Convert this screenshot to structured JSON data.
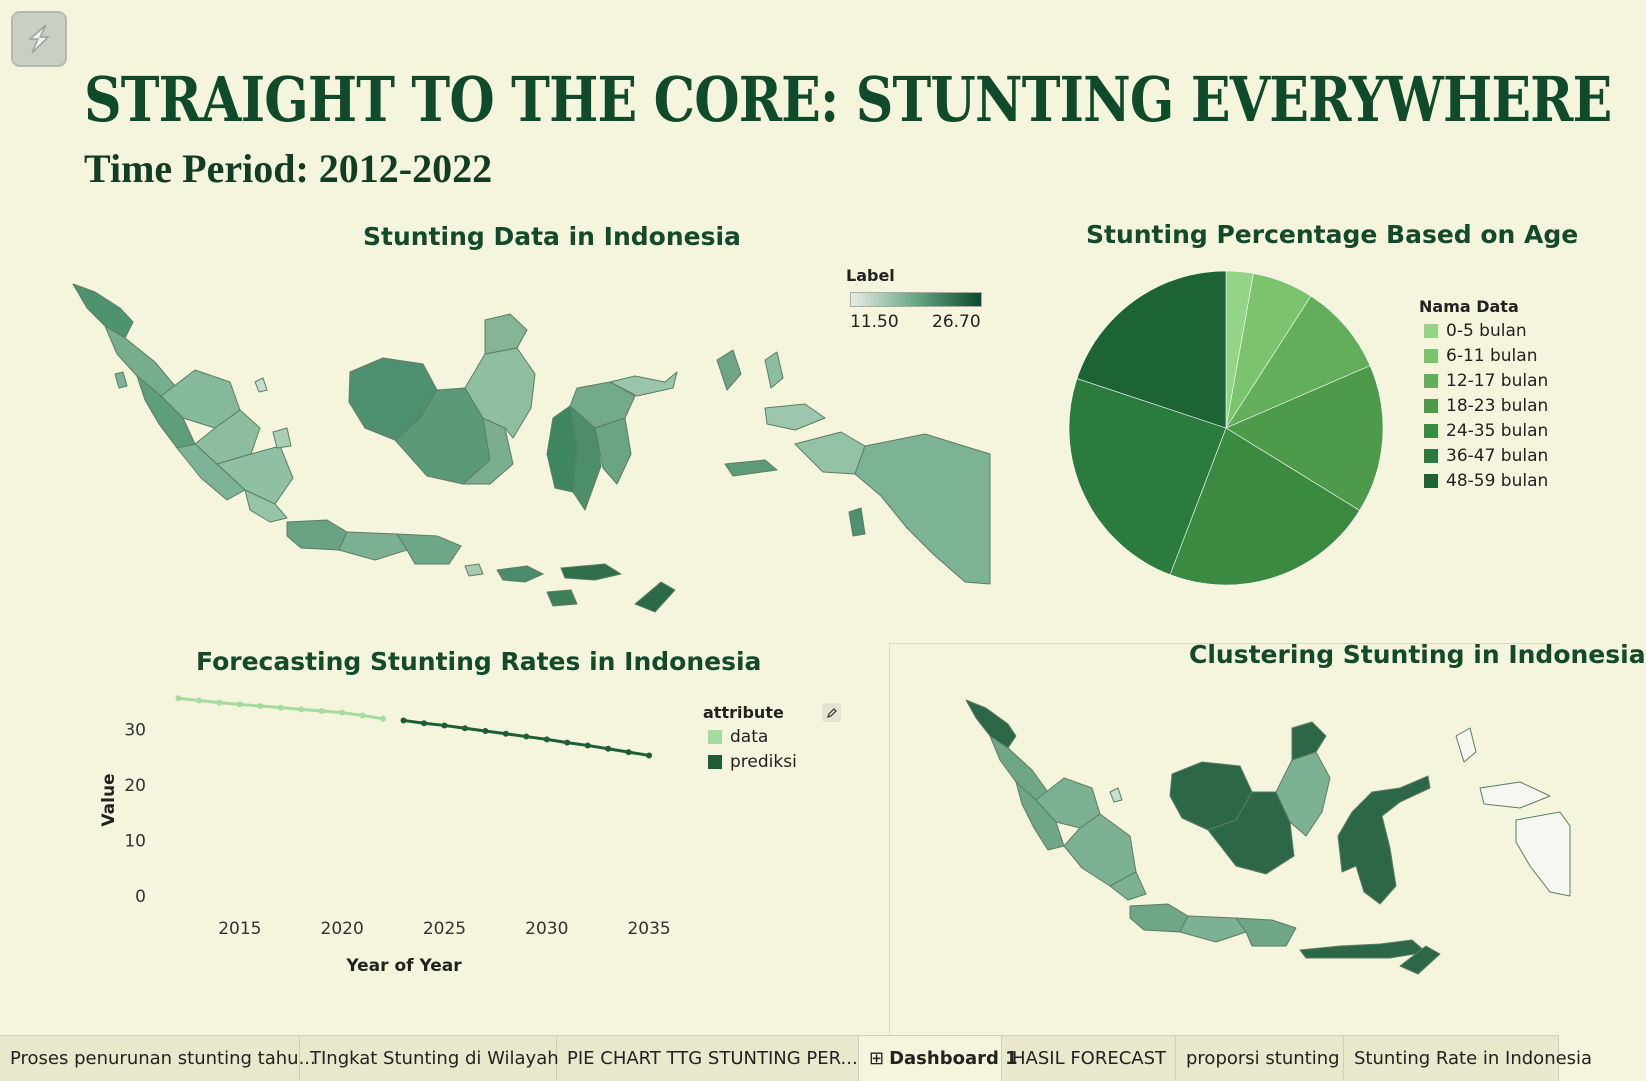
{
  "header": {
    "title": "STRAIGHT TO THE CORE: STUNTING EVERYWHERE",
    "subtitle": "Time Period: 2012-2022"
  },
  "map_panel": {
    "title": "Stunting Data in Indonesia",
    "legend_title": "Label",
    "legend_min": "11.50",
    "legend_max": "26.70",
    "colors": {
      "low": "#e8ece4",
      "high": "#0d4a2c"
    }
  },
  "pie_panel": {
    "title": "Stunting Percentage Based on Age",
    "legend_title": "Nama Data"
  },
  "forecast_panel": {
    "title": "Forecasting Stunting Rates in Indonesia",
    "legend_title": "attribute",
    "edit_icon": "pencil-icon"
  },
  "cluster_panel": {
    "title": "Clustering Stunting in Indonesia"
  },
  "chart_data": [
    {
      "type": "pie",
      "title": "Stunting Percentage Based on Age",
      "legend_title": "Nama Data",
      "legend_position": "right",
      "categories": [
        "0-5 bulan",
        "6-11 bulan",
        "12-17 bulan",
        "18-23 bulan",
        "24-35 bulan",
        "36-47 bulan",
        "48-59 bulan"
      ],
      "values": [
        2.8,
        6.3,
        9.4,
        15.3,
        22.0,
        24.3,
        19.9
      ],
      "colors": [
        "#95d487",
        "#7cc36d",
        "#63ae5a",
        "#4c9a4a",
        "#3a8a42",
        "#2b7b3e",
        "#1d6435"
      ]
    },
    {
      "type": "line",
      "title": "Forecasting Stunting Rates in Indonesia",
      "xlabel": "Year of Year",
      "ylabel": "Value",
      "xlim": [
        2011,
        2037
      ],
      "ylim": [
        0,
        36
      ],
      "xticks": [
        2015,
        2020,
        2025,
        2030,
        2035
      ],
      "yticks": [
        0,
        10,
        20,
        30
      ],
      "legend_title": "attribute",
      "legend_position": "right",
      "series": [
        {
          "name": "data",
          "color": "#a6dba0",
          "x": [
            2012,
            2013,
            2014,
            2015,
            2016,
            2017,
            2018,
            2019,
            2020,
            2021,
            2022
          ],
          "y": [
            35.6,
            35.2,
            34.8,
            34.5,
            34.2,
            33.9,
            33.6,
            33.3,
            33.0,
            32.5,
            31.9
          ]
        },
        {
          "name": "prediksi",
          "color": "#1e5e36",
          "x": [
            2023,
            2024,
            2025,
            2026,
            2027,
            2028,
            2029,
            2030,
            2031,
            2032,
            2033,
            2034,
            2035
          ],
          "y": [
            31.6,
            31.1,
            30.7,
            30.2,
            29.7,
            29.2,
            28.7,
            28.2,
            27.6,
            27.1,
            26.5,
            25.9,
            25.3
          ]
        }
      ]
    }
  ],
  "tabs": [
    {
      "label": "Proses penurunan stunting tahu...",
      "active": false
    },
    {
      "label": "TIngkat Stunting di Wilayah",
      "active": false
    },
    {
      "label": "PIE CHART TTG STUNTING PER...",
      "active": false
    },
    {
      "label": "Dashboard 1",
      "active": true,
      "icon": "dashboard-grid-icon"
    },
    {
      "label": "HASIL FORECAST",
      "active": false
    },
    {
      "label": "proporsi stunting",
      "active": false
    },
    {
      "label": "Stunting Rate in Indonesia",
      "active": false
    }
  ]
}
